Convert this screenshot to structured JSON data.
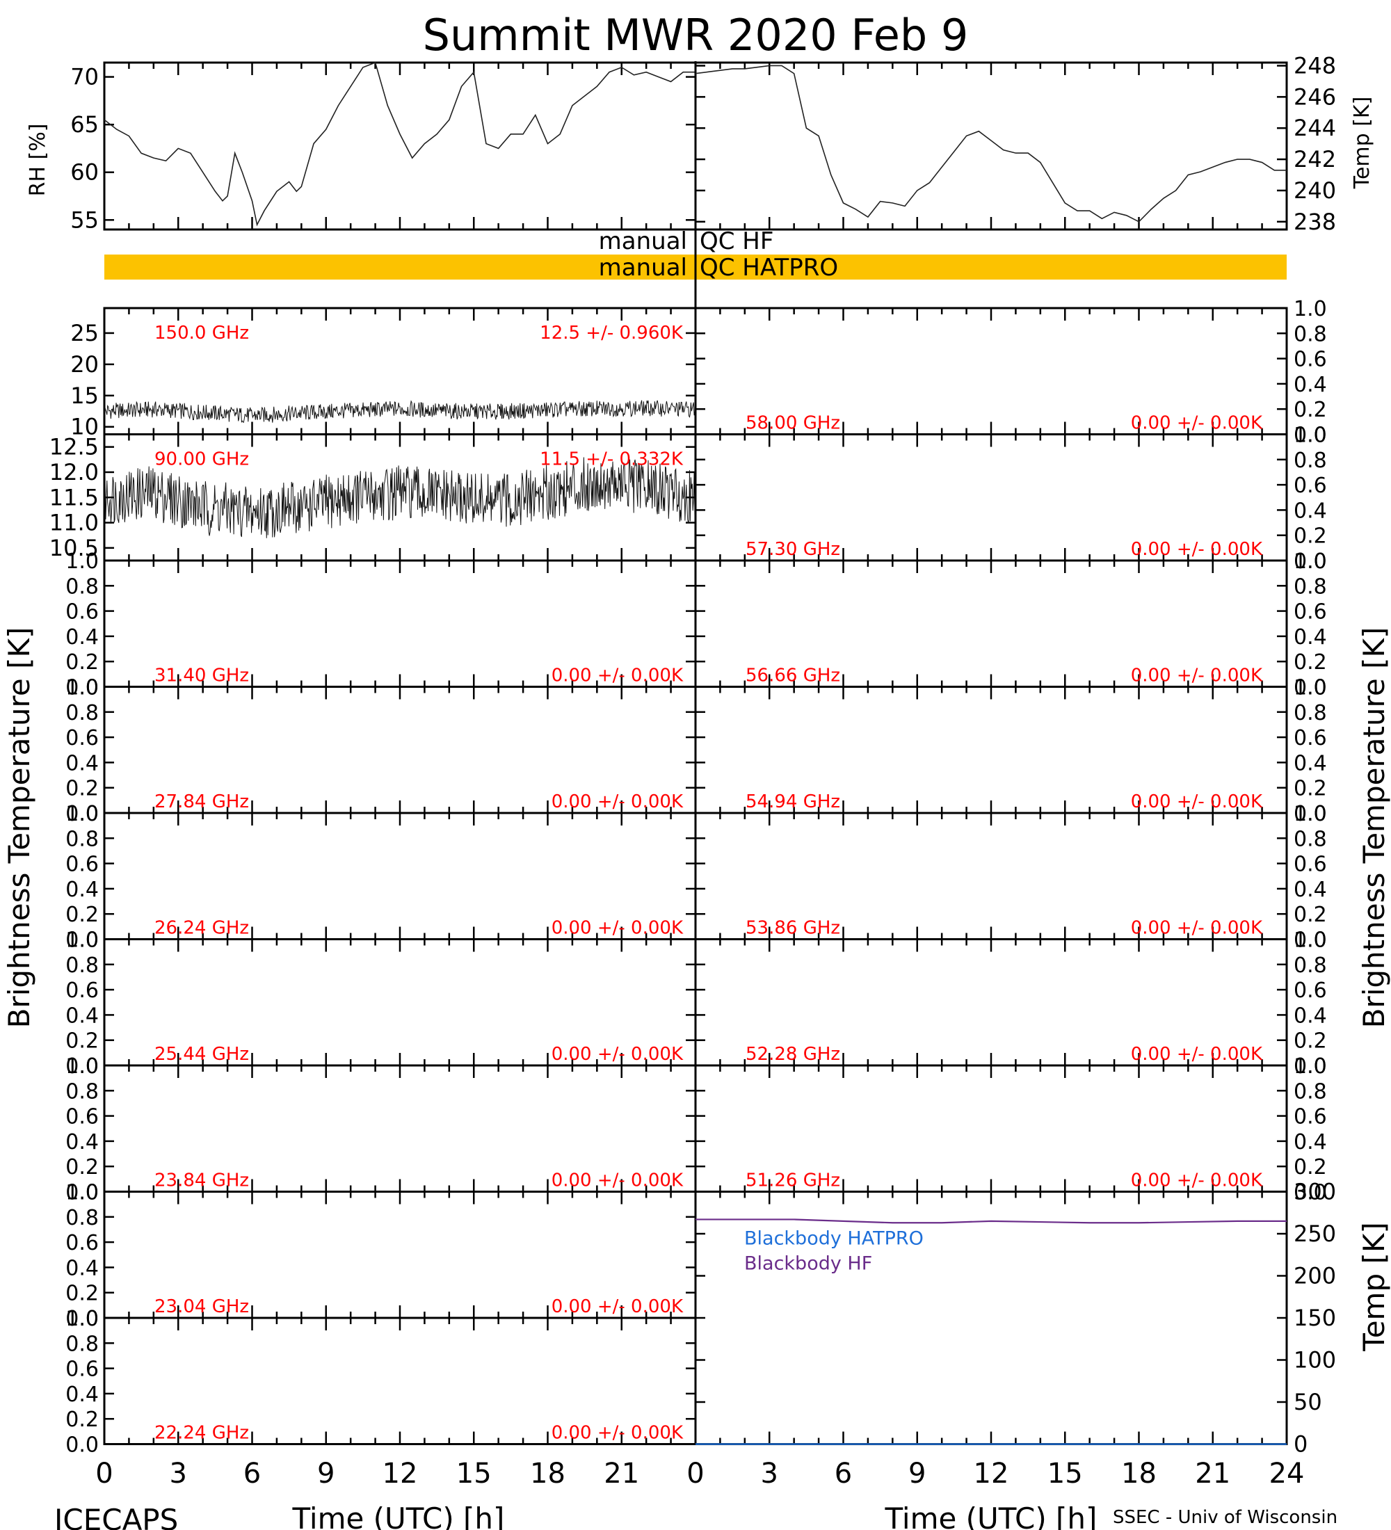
{
  "title": "Summit MWR 2020 Feb  9",
  "colors": {
    "red_label": "#ff0000",
    "qc_bar": "#fcc200",
    "hatpro": "#1e6fd9",
    "hf": "#6a2c8a",
    "axis": "#000000"
  },
  "footer": {
    "left": "ICECAPS",
    "right": "SSEC - Univ of Wisconsin"
  },
  "qc": {
    "hf_left": "manual",
    "hf_right": "QC HF",
    "hatpro_left": "manual",
    "hatpro_right": "QC HATPRO"
  },
  "chart_data": [
    {
      "type": "line",
      "panel": "top-left",
      "ylabel": "RH [%]",
      "xlim": [
        0,
        24
      ],
      "ylim": [
        54,
        71.5
      ],
      "yticks": [
        "55",
        "60",
        "65",
        "70"
      ],
      "x": [
        0,
        0.5,
        1,
        1.5,
        2,
        2.5,
        3,
        3.5,
        4,
        4.5,
        4.8,
        5,
        5.3,
        5.6,
        6,
        6.2,
        6.5,
        7,
        7.5,
        7.8,
        8,
        8.5,
        9,
        9.5,
        10,
        10.5,
        11,
        11.5,
        12,
        12.5,
        13,
        13.5,
        14,
        14.5,
        15,
        15.5,
        16,
        16.5,
        17,
        17.5,
        18,
        18.5,
        19,
        19.5,
        20,
        20.5,
        21,
        21.5,
        22,
        22.5,
        23,
        23.5,
        24
      ],
      "y": [
        65.5,
        64.5,
        63.8,
        62,
        61.5,
        61.2,
        62.5,
        62,
        60,
        58,
        57,
        57.5,
        62,
        60,
        57,
        54.5,
        56,
        58,
        59,
        58,
        58.5,
        63,
        64.5,
        67,
        69,
        71,
        71.5,
        67,
        64,
        61.5,
        63,
        64,
        65.5,
        69,
        70.5,
        63,
        62.5,
        64,
        64,
        66,
        63,
        64,
        67,
        68,
        69,
        70.5,
        71,
        70.2,
        70.5,
        70,
        69.5,
        70.5,
        70.5
      ]
    },
    {
      "type": "line",
      "panel": "top-right",
      "ylabel": "Temp [K]",
      "xlim": [
        0,
        24
      ],
      "ylim": [
        237.5,
        248.2
      ],
      "yticks": [
        "238",
        "240",
        "242",
        "244",
        "246",
        "248"
      ],
      "x": [
        0,
        0.5,
        1,
        1.5,
        2,
        2.5,
        3,
        3.5,
        4,
        4.5,
        5,
        5.5,
        6,
        6.5,
        7,
        7.5,
        8,
        8.5,
        9,
        9.5,
        10,
        10.5,
        11,
        11.5,
        12,
        12.5,
        13,
        13.5,
        14,
        14.5,
        15,
        15.5,
        16,
        16.5,
        17,
        17.5,
        18,
        18.5,
        19,
        19.5,
        20,
        20.5,
        21,
        21.5,
        22,
        22.5,
        23,
        23.5,
        24
      ],
      "y": [
        247.5,
        247.6,
        247.7,
        247.8,
        247.8,
        247.9,
        248,
        248,
        247.5,
        244,
        243.5,
        241,
        239.2,
        238.8,
        238.3,
        239.3,
        239.2,
        239,
        240,
        240.5,
        241.5,
        242.5,
        243.5,
        243.8,
        243.2,
        242.6,
        242.4,
        242.4,
        241.8,
        240.5,
        239.2,
        238.7,
        238.7,
        238.2,
        238.6,
        238.4,
        238,
        238.8,
        239.5,
        240,
        241,
        241.2,
        241.5,
        241.8,
        242,
        242,
        241.8,
        241.3,
        241.3
      ]
    },
    {
      "type": "line",
      "panel": "left-1",
      "label": "150.0 GHz",
      "stat": "12.5 +/- 0.960K",
      "ylim": [
        8.8,
        29
      ],
      "yticks": [
        "10",
        "15",
        "20",
        "25"
      ],
      "x": [
        0,
        2,
        4,
        6,
        8,
        10,
        12,
        14,
        16,
        18,
        20,
        22,
        24
      ],
      "y": [
        12.5,
        12.8,
        12.3,
        11.8,
        12.2,
        12.6,
        12.9,
        12.5,
        12.4,
        12.7,
        12.9,
        13.0,
        12.8
      ],
      "noise": 1.3
    },
    {
      "type": "line",
      "panel": "left-2",
      "label": "90.00 GHz",
      "stat": "11.5 +/- 0.332K",
      "ylim": [
        10.25,
        12.75
      ],
      "yticks": [
        "10.5",
        "11.0",
        "11.5",
        "12.0",
        "12.5"
      ],
      "x": [
        0,
        2,
        4,
        6,
        8,
        10,
        12,
        14,
        16,
        18,
        20,
        22,
        24
      ],
      "y": [
        11.5,
        11.6,
        11.3,
        11.2,
        11.3,
        11.5,
        11.6,
        11.5,
        11.4,
        11.6,
        11.8,
        11.7,
        11.5
      ],
      "noise": 0.55
    },
    {
      "type": "line",
      "panel": "left-3",
      "label": "31.40 GHz",
      "stat": "0.00 +/- 0.00K"
    },
    {
      "type": "line",
      "panel": "left-4",
      "label": "27.84 GHz",
      "stat": "0.00 +/- 0.00K"
    },
    {
      "type": "line",
      "panel": "left-5",
      "label": "26.24 GHz",
      "stat": "0.00 +/- 0.00K"
    },
    {
      "type": "line",
      "panel": "left-6",
      "label": "25.44 GHz",
      "stat": "0.00 +/- 0.00K"
    },
    {
      "type": "line",
      "panel": "left-7",
      "label": "23.84 GHz",
      "stat": "0.00 +/- 0.00K"
    },
    {
      "type": "line",
      "panel": "left-8",
      "label": "23.04 GHz",
      "stat": "0.00 +/- 0.00K"
    },
    {
      "type": "line",
      "panel": "left-9",
      "label": "22.24 GHz",
      "stat": "0.00 +/- 0.00K"
    },
    {
      "type": "line",
      "panel": "right-1",
      "label": "58.00 GHz",
      "stat": "0.00 +/- 0.00K"
    },
    {
      "type": "line",
      "panel": "right-2",
      "label": "57.30 GHz",
      "stat": "0.00 +/- 0.00K"
    },
    {
      "type": "line",
      "panel": "right-3",
      "label": "56.66 GHz",
      "stat": "0.00 +/- 0.00K"
    },
    {
      "type": "line",
      "panel": "right-4",
      "label": "54.94 GHz",
      "stat": "0.00 +/- 0.00K"
    },
    {
      "type": "line",
      "panel": "right-5",
      "label": "53.86 GHz",
      "stat": "0.00 +/- 0.00K"
    },
    {
      "type": "line",
      "panel": "right-6",
      "label": "52.28 GHz",
      "stat": "0.00 +/- 0.00K"
    },
    {
      "type": "line",
      "panel": "right-7",
      "label": "51.26 GHz",
      "stat": "0.00 +/- 0.00K"
    },
    {
      "type": "line",
      "panel": "right-8",
      "ylabel": "Temp [K]",
      "ylim": [
        0,
        300
      ],
      "yticks": [
        "0",
        "50",
        "100",
        "150",
        "200",
        "250",
        "300"
      ],
      "series": [
        {
          "name": "Blackbody HATPRO",
          "x": [
            0,
            24
          ],
          "y": [
            0,
            0
          ]
        },
        {
          "name": "Blackbody HF",
          "x": [
            0,
            2,
            4,
            6,
            8,
            10,
            12,
            14,
            16,
            18,
            20,
            22,
            24
          ],
          "y": [
            267,
            267,
            267,
            265,
            263,
            263,
            265,
            264,
            263,
            263,
            264,
            265,
            265
          ]
        }
      ]
    }
  ],
  "ylabel_brightness": "Brightness Temperature [K]",
  "small_yticks": [
    "0.0",
    "0.2",
    "0.4",
    "0.6",
    "0.8",
    "1.0"
  ],
  "xaxis": {
    "ticks": [
      "0",
      "3",
      "6",
      "9",
      "12",
      "15",
      "18",
      "21"
    ],
    "ticks_right": [
      "0",
      "3",
      "6",
      "9",
      "12",
      "15",
      "18",
      "21",
      "24"
    ],
    "label": "Time (UTC) [h]"
  }
}
